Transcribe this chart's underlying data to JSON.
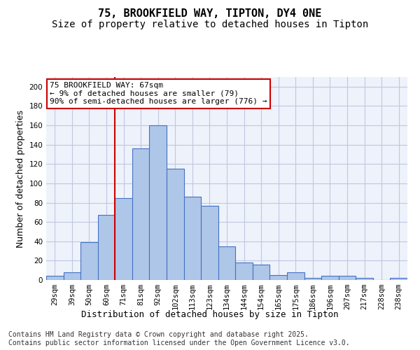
{
  "title1": "75, BROOKFIELD WAY, TIPTON, DY4 0NE",
  "title2": "Size of property relative to detached houses in Tipton",
  "xlabel": "Distribution of detached houses by size in Tipton",
  "ylabel": "Number of detached properties",
  "categories": [
    "29sqm",
    "39sqm",
    "50sqm",
    "60sqm",
    "71sqm",
    "81sqm",
    "92sqm",
    "102sqm",
    "113sqm",
    "123sqm",
    "134sqm",
    "144sqm",
    "154sqm",
    "165sqm",
    "175sqm",
    "186sqm",
    "196sqm",
    "207sqm",
    "217sqm",
    "228sqm",
    "238sqm"
  ],
  "values": [
    4,
    8,
    39,
    67,
    85,
    136,
    160,
    115,
    86,
    77,
    35,
    18,
    16,
    5,
    8,
    2,
    4,
    4,
    2,
    0,
    2
  ],
  "bar_color": "#aec6e8",
  "bar_edgecolor": "#4472c4",
  "vline_color": "#cc0000",
  "vline_x": 3.5,
  "annotation_text": "75 BROOKFIELD WAY: 67sqm\n← 9% of detached houses are smaller (79)\n90% of semi-detached houses are larger (776) →",
  "annotation_box_color": "#cc0000",
  "bg_color": "#eef2fb",
  "grid_color": "#c0c8e0",
  "ylim": [
    0,
    210
  ],
  "yticks": [
    0,
    20,
    40,
    60,
    80,
    100,
    120,
    140,
    160,
    180,
    200
  ],
  "footer": "Contains HM Land Registry data © Crown copyright and database right 2025.\nContains public sector information licensed under the Open Government Licence v3.0.",
  "title1_fontsize": 11,
  "title2_fontsize": 10,
  "xlabel_fontsize": 9,
  "ylabel_fontsize": 9,
  "tick_fontsize": 7.5,
  "annotation_fontsize": 8,
  "footer_fontsize": 7
}
